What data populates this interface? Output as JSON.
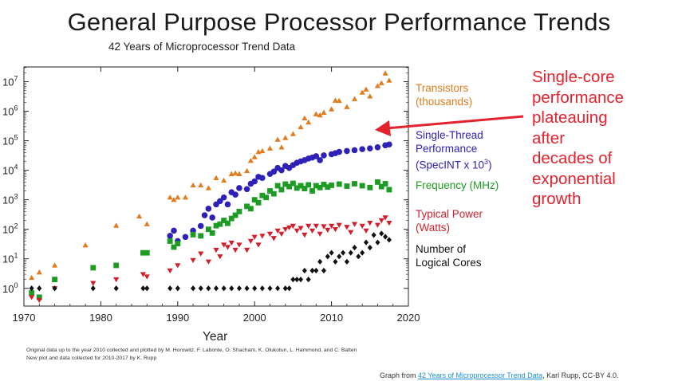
{
  "header": {
    "title": "General Purpose Processor Performance Trends",
    "subtitle": "42 Years of Microprocessor Trend Data"
  },
  "legend": {
    "transistors": [
      "Transistors",
      "(thousands)"
    ],
    "single_thread": [
      "Single-Thread",
      "Performance",
      "(SpecINT x 10",
      "3",
      ")"
    ],
    "frequency": [
      "Frequency (MHz)"
    ],
    "power": [
      "Typical Power",
      "(Watts)"
    ],
    "cores": [
      "Number of",
      "Logical Cores"
    ]
  },
  "callout": {
    "lines": [
      "Single-core",
      "performance",
      "plateauing",
      "after",
      "decades of",
      "exponential",
      "growth"
    ],
    "color": "#e3222e"
  },
  "footnote": {
    "line1": "Original data up to the year 2010 collected and plotted by M. Horowitz, F. Labonte, O. Shacham, K. Olukotun, L. Hammond, and C. Batten",
    "line2": "New plot and data collected for 2010-2017 by K. Rupp"
  },
  "credit": {
    "prefix": "Graph from ",
    "link_text": "42 Years of Microprocessor Trend Data",
    "suffix": ", Karl Rupp, CC-BY 4.0."
  },
  "chart_data": {
    "type": "scatter",
    "title": "",
    "xlabel": "Year",
    "ylabel": "",
    "xlim": [
      1970,
      2020
    ],
    "ylim_exponent": [
      -0.6,
      7.5
    ],
    "y_scale": "log",
    "x_ticks": [
      1970,
      1980,
      1990,
      2000,
      2010,
      2020
    ],
    "x_tick_labels": [
      "1970",
      "1980",
      "1990",
      "2000",
      "2010",
      "2020"
    ],
    "y_ticks": [
      1,
      10,
      100,
      1000,
      10000,
      100000,
      1000000,
      10000000
    ],
    "y_tick_labels": [
      [
        "10",
        "0"
      ],
      [
        "10",
        "1"
      ],
      [
        "10",
        "2"
      ],
      [
        "10",
        "3"
      ],
      [
        "10",
        "4"
      ],
      [
        "10",
        "5"
      ],
      [
        "10",
        "6"
      ],
      [
        "10",
        "7"
      ]
    ],
    "series": [
      {
        "name": "Transistors (thousands)",
        "marker": "triangle-up",
        "color": "#e07c1e",
        "points": [
          [
            1971,
            2.3
          ],
          [
            1972,
            3.5
          ],
          [
            1974,
            6
          ],
          [
            1978,
            29
          ],
          [
            1982,
            134
          ],
          [
            1985,
            275
          ],
          [
            1986,
            150
          ],
          [
            1989,
            1200
          ],
          [
            1989.5,
            1000
          ],
          [
            1990,
            1200
          ],
          [
            1991,
            1200
          ],
          [
            1992,
            3100
          ],
          [
            1993,
            3100
          ],
          [
            1994,
            2500
          ],
          [
            1995,
            5500
          ],
          [
            1996,
            4500
          ],
          [
            1997,
            7500
          ],
          [
            1997.5,
            8000
          ],
          [
            1998,
            7500
          ],
          [
            1999,
            9500
          ],
          [
            1999.5,
            21000
          ],
          [
            2000,
            28000
          ],
          [
            2000.5,
            42000
          ],
          [
            2001,
            45000
          ],
          [
            2002,
            55000
          ],
          [
            2003,
            110000
          ],
          [
            2003.5,
            60000
          ],
          [
            2004,
            125000
          ],
          [
            2005,
            170000
          ],
          [
            2006,
            290000
          ],
          [
            2006.5,
            580000
          ],
          [
            2007,
            420000
          ],
          [
            2008,
            800000
          ],
          [
            2008.5,
            731000
          ],
          [
            2009,
            900000
          ],
          [
            2010,
            1170000
          ],
          [
            2010.5,
            2300000
          ],
          [
            2011,
            2270000
          ],
          [
            2012,
            1400000
          ],
          [
            2013,
            2600000
          ],
          [
            2014,
            4300000
          ],
          [
            2014.5,
            5500000
          ],
          [
            2015,
            3200000
          ],
          [
            2016,
            7200000
          ],
          [
            2016.5,
            9000000
          ],
          [
            2017,
            19200000
          ],
          [
            2017.5,
            11000000
          ]
        ]
      },
      {
        "name": "Single-Thread Performance (SpecINT x 10^3)",
        "marker": "circle",
        "color": "#2d21b8",
        "points": [
          [
            1989,
            60
          ],
          [
            1989.5,
            90
          ],
          [
            1990,
            40
          ],
          [
            1991,
            55
          ],
          [
            1992,
            90
          ],
          [
            1993,
            130
          ],
          [
            1993.5,
            300
          ],
          [
            1994,
            500
          ],
          [
            1994.5,
            250
          ],
          [
            1995,
            700
          ],
          [
            1995.5,
            900
          ],
          [
            1996,
            1200
          ],
          [
            1996.5,
            700
          ],
          [
            1997,
            1800
          ],
          [
            1997.5,
            1500
          ],
          [
            1998,
            2500
          ],
          [
            1999,
            2300
          ],
          [
            1999.5,
            3500
          ],
          [
            2000,
            4200
          ],
          [
            2000.5,
            6000
          ],
          [
            2001,
            5500
          ],
          [
            2002,
            7500
          ],
          [
            2002.5,
            9000
          ],
          [
            2003,
            12000
          ],
          [
            2003.5,
            10000
          ],
          [
            2004,
            14000
          ],
          [
            2004.5,
            12000
          ],
          [
            2005,
            15000
          ],
          [
            2005.5,
            18000
          ],
          [
            2006,
            20000
          ],
          [
            2006.5,
            22000
          ],
          [
            2007,
            25000
          ],
          [
            2007.5,
            27000
          ],
          [
            2008,
            30000
          ],
          [
            2008.5,
            22000
          ],
          [
            2009,
            32000
          ],
          [
            2010,
            35000
          ],
          [
            2010.5,
            38000
          ],
          [
            2011,
            42000
          ],
          [
            2012,
            45000
          ],
          [
            2013,
            48000
          ],
          [
            2014,
            52000
          ],
          [
            2015,
            55000
          ],
          [
            2016,
            60000
          ],
          [
            2017,
            70000
          ],
          [
            2017.5,
            75000
          ]
        ]
      },
      {
        "name": "Frequency (MHz)",
        "marker": "square",
        "color": "#1d9c24",
        "points": [
          [
            1971,
            0.7
          ],
          [
            1972,
            0.5
          ],
          [
            1974,
            2
          ],
          [
            1979,
            5
          ],
          [
            1982,
            6
          ],
          [
            1985.5,
            16
          ],
          [
            1986,
            16
          ],
          [
            1989,
            40
          ],
          [
            1989.5,
            25
          ],
          [
            1990,
            33
          ],
          [
            1992,
            66
          ],
          [
            1993,
            60
          ],
          [
            1994,
            100
          ],
          [
            1994.5,
            75
          ],
          [
            1995,
            133
          ],
          [
            1995.5,
            150
          ],
          [
            1996,
            200
          ],
          [
            1996.5,
            160
          ],
          [
            1997,
            233
          ],
          [
            1997.5,
            300
          ],
          [
            1998,
            400
          ],
          [
            1999,
            600
          ],
          [
            1999.5,
            500
          ],
          [
            2000,
            1000
          ],
          [
            2000.5,
            800
          ],
          [
            2001,
            1400
          ],
          [
            2001.5,
            1200
          ],
          [
            2002,
            2000
          ],
          [
            2002.5,
            1600
          ],
          [
            2003,
            3000
          ],
          [
            2003.5,
            2200
          ],
          [
            2004,
            3400
          ],
          [
            2004.5,
            2800
          ],
          [
            2005,
            3600
          ],
          [
            2005.5,
            2500
          ],
          [
            2006,
            3000
          ],
          [
            2006.5,
            2400
          ],
          [
            2007,
            3200
          ],
          [
            2007.5,
            2000
          ],
          [
            2008,
            3000
          ],
          [
            2008.5,
            2600
          ],
          [
            2009,
            3300
          ],
          [
            2009.5,
            2700
          ],
          [
            2010,
            3100
          ],
          [
            2011,
            3400
          ],
          [
            2012,
            2900
          ],
          [
            2013,
            3500
          ],
          [
            2014,
            3000
          ],
          [
            2015,
            2600
          ],
          [
            2016,
            4000
          ],
          [
            2016.5,
            2800
          ],
          [
            2017,
            3500
          ],
          [
            2017.5,
            2200
          ]
        ]
      },
      {
        "name": "Typical Power (Watts)",
        "marker": "triangle-down",
        "color": "#d1202c",
        "points": [
          [
            1971,
            0.5
          ],
          [
            1972,
            0.4
          ],
          [
            1974,
            1
          ],
          [
            1979,
            1.5
          ],
          [
            1982,
            2
          ],
          [
            1985.5,
            3
          ],
          [
            1986,
            2.5
          ],
          [
            1989,
            4
          ],
          [
            1990,
            6
          ],
          [
            1992,
            9
          ],
          [
            1993,
            15
          ],
          [
            1994,
            8
          ],
          [
            1995,
            20
          ],
          [
            1995.5,
            12
          ],
          [
            1996,
            30
          ],
          [
            1996.5,
            25
          ],
          [
            1997,
            35
          ],
          [
            1997.5,
            20
          ],
          [
            1998,
            30
          ],
          [
            1999,
            20
          ],
          [
            1999.5,
            40
          ],
          [
            2000,
            55
          ],
          [
            2000.5,
            30
          ],
          [
            2001,
            60
          ],
          [
            2002,
            70
          ],
          [
            2002.5,
            50
          ],
          [
            2003,
            90
          ],
          [
            2003.5,
            70
          ],
          [
            2004,
            100
          ],
          [
            2004.5,
            115
          ],
          [
            2005,
            130
          ],
          [
            2005.5,
            90
          ],
          [
            2006,
            110
          ],
          [
            2006.5,
            65
          ],
          [
            2007,
            130
          ],
          [
            2007.5,
            90
          ],
          [
            2008,
            130
          ],
          [
            2008.5,
            70
          ],
          [
            2009,
            125
          ],
          [
            2009.5,
            95
          ],
          [
            2010,
            130
          ],
          [
            2010.5,
            100
          ],
          [
            2011,
            140
          ],
          [
            2012,
            120
          ],
          [
            2012.5,
            80
          ],
          [
            2013,
            150
          ],
          [
            2014,
            130
          ],
          [
            2014.5,
            90
          ],
          [
            2015,
            165
          ],
          [
            2016,
            140
          ],
          [
            2016.5,
            200
          ],
          [
            2017,
            250
          ],
          [
            2017.5,
            165
          ]
        ]
      },
      {
        "name": "Number of Logical Cores",
        "marker": "diamond",
        "color": "#111111",
        "points": [
          [
            1971,
            1
          ],
          [
            1972,
            1
          ],
          [
            1974,
            1
          ],
          [
            1979,
            1
          ],
          [
            1982,
            1
          ],
          [
            1985.5,
            1
          ],
          [
            1986,
            1
          ],
          [
            1989,
            1
          ],
          [
            1990,
            1
          ],
          [
            1992,
            1
          ],
          [
            1993,
            1
          ],
          [
            1994,
            1
          ],
          [
            1995,
            1
          ],
          [
            1996,
            1
          ],
          [
            1997,
            1
          ],
          [
            1998,
            1
          ],
          [
            1999,
            1
          ],
          [
            2000,
            1
          ],
          [
            2001,
            1
          ],
          [
            2002,
            1
          ],
          [
            2003,
            1
          ],
          [
            2004,
            1
          ],
          [
            2004.5,
            1
          ],
          [
            2005,
            2
          ],
          [
            2005.5,
            2
          ],
          [
            2006,
            2
          ],
          [
            2006.5,
            4
          ],
          [
            2007,
            2
          ],
          [
            2007.5,
            4
          ],
          [
            2008,
            4
          ],
          [
            2008.5,
            8
          ],
          [
            2009,
            4
          ],
          [
            2009.5,
            12
          ],
          [
            2010,
            16
          ],
          [
            2010.5,
            8
          ],
          [
            2011,
            12
          ],
          [
            2011.5,
            16
          ],
          [
            2012,
            8
          ],
          [
            2012.5,
            16
          ],
          [
            2013,
            24
          ],
          [
            2013.5,
            12
          ],
          [
            2014,
            16
          ],
          [
            2014.5,
            36
          ],
          [
            2015,
            24
          ],
          [
            2015.5,
            64
          ],
          [
            2016,
            36
          ],
          [
            2016.5,
            72
          ],
          [
            2017,
            56
          ],
          [
            2017.5,
            44
          ]
        ]
      }
    ]
  }
}
